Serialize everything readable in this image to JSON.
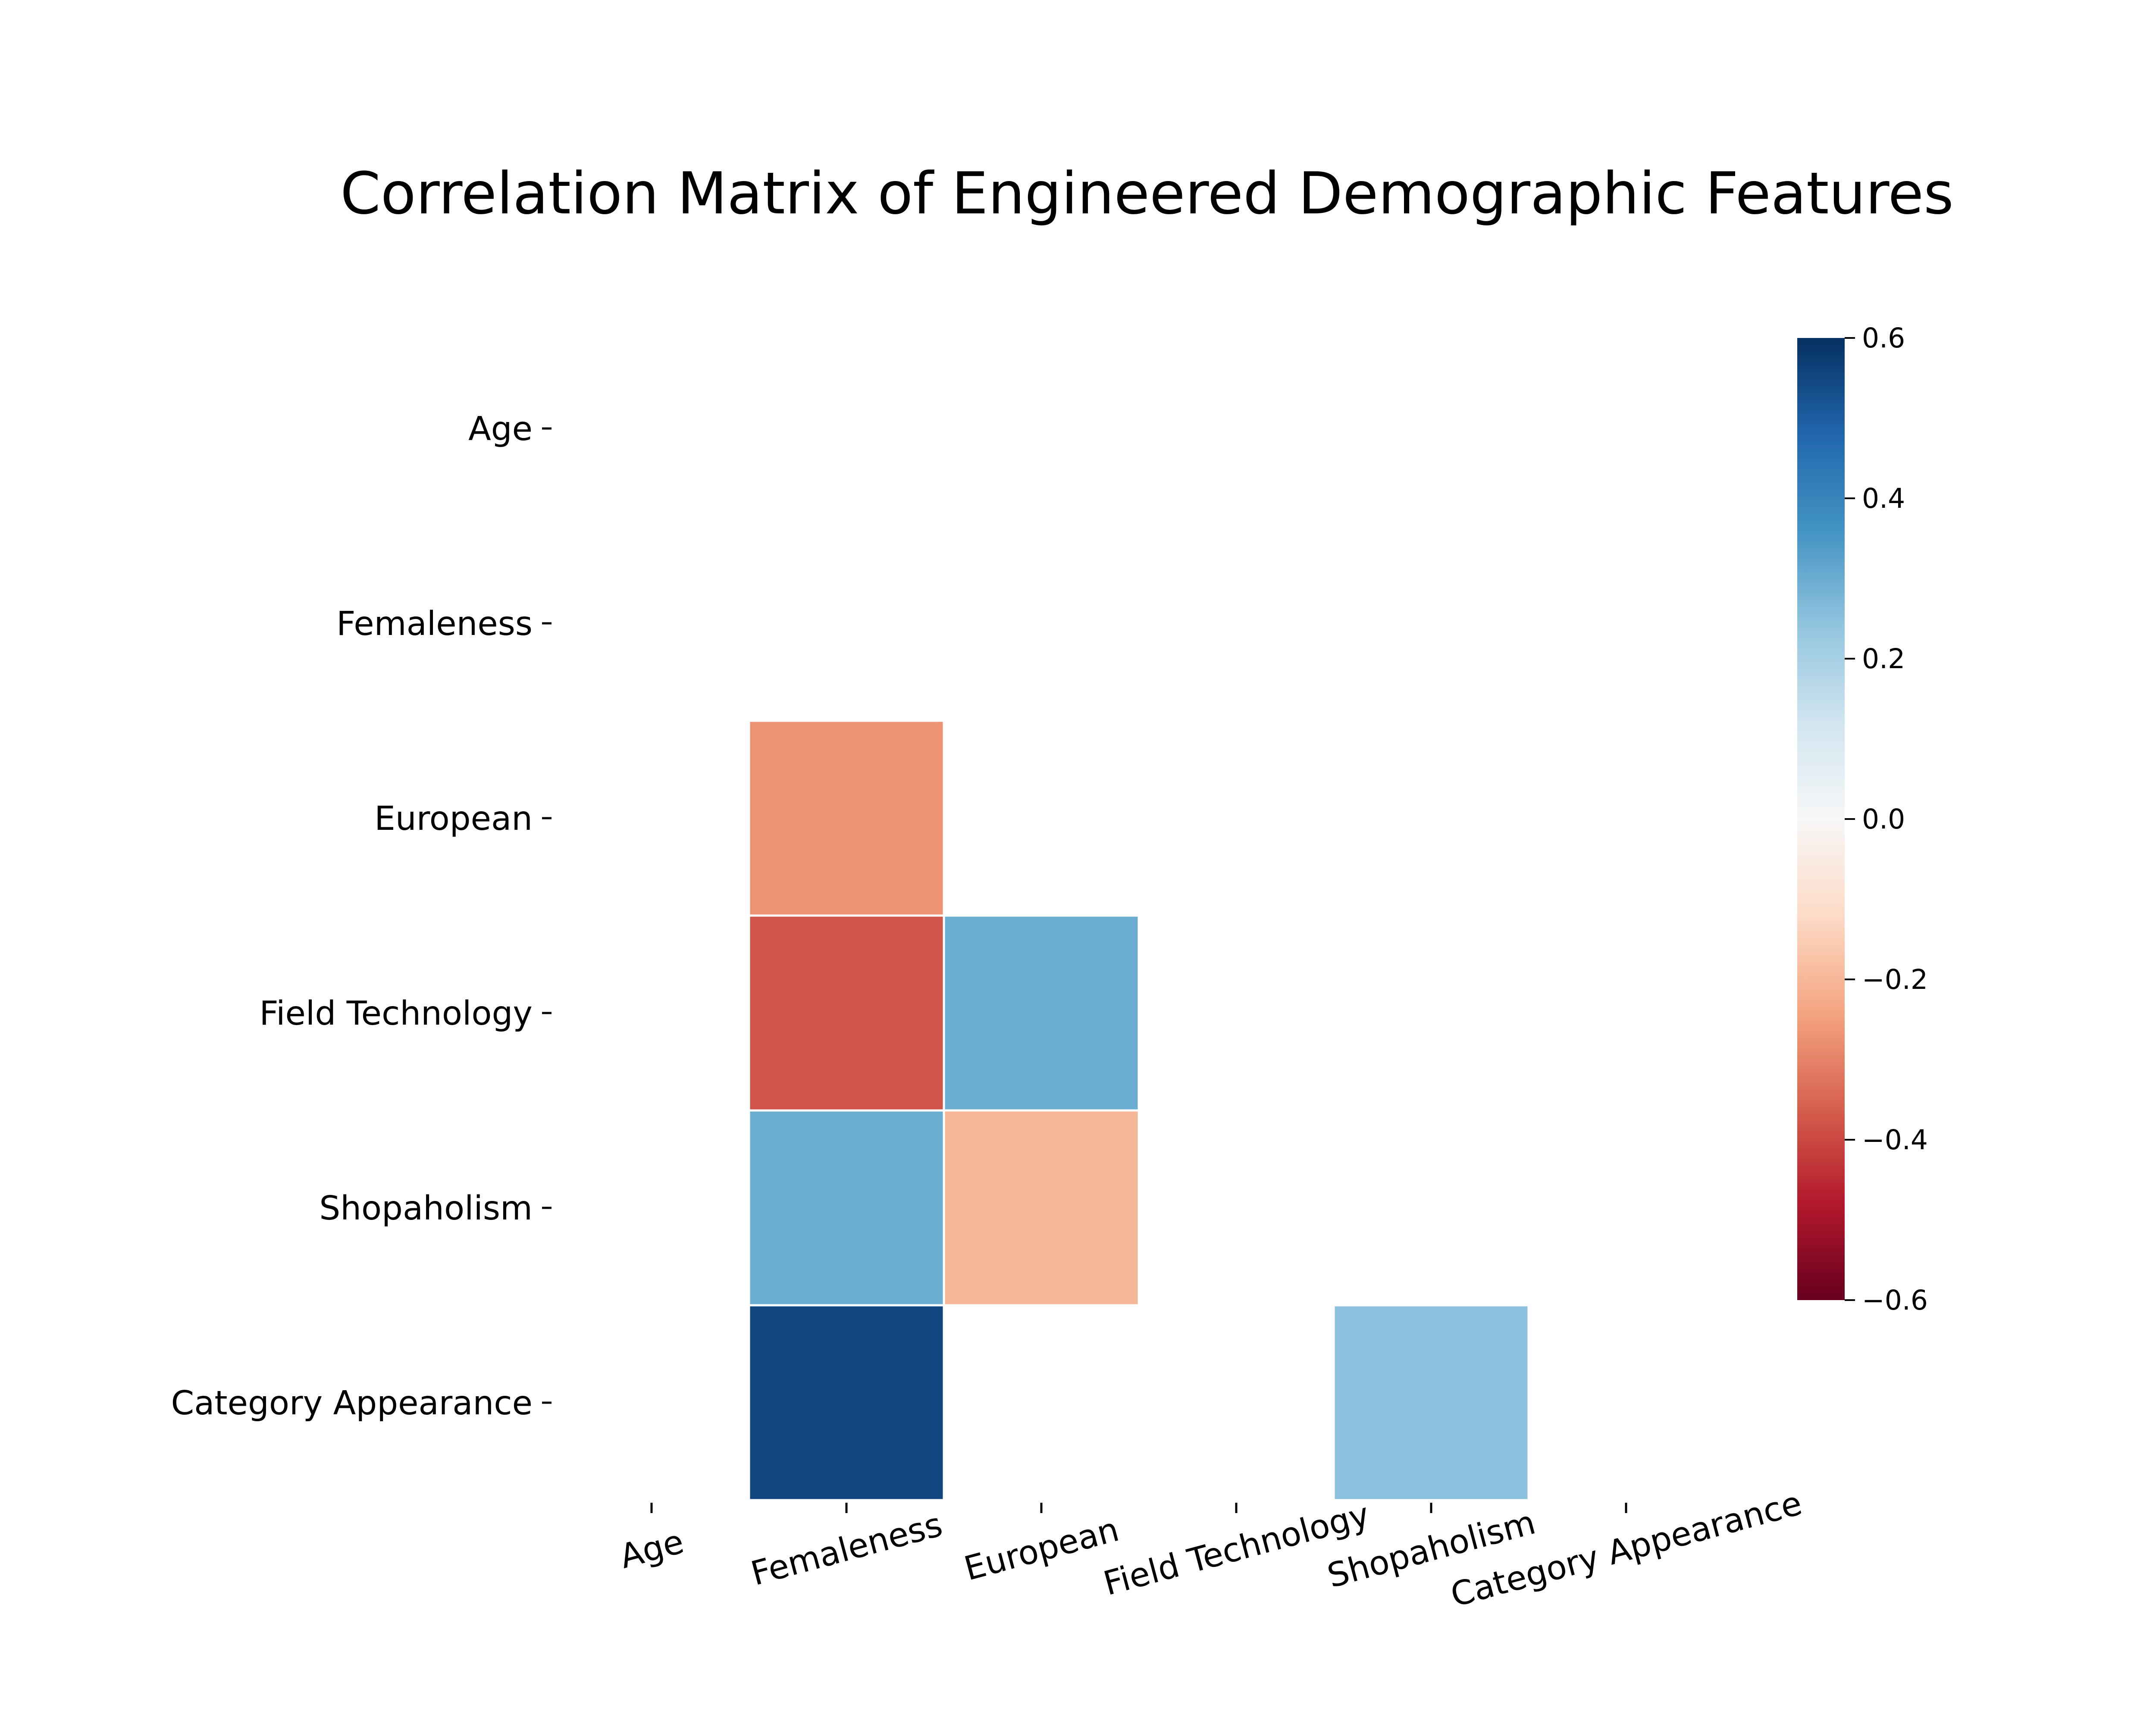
{
  "chart_data": {
    "type": "heatmap",
    "title": "Correlation Matrix of Engineered Demographic Features",
    "variables": [
      "Age",
      "Femaleness",
      "European",
      "Field Technology",
      "Shopaholism",
      "Category Appearance"
    ],
    "mask": "upper-triangle-and-diagonal; cells with |r| below threshold hidden",
    "cells": [
      {
        "row": "European",
        "col": "Femaleness",
        "value": -0.27
      },
      {
        "row": "Field Technology",
        "col": "Femaleness",
        "value": -0.38
      },
      {
        "row": "Field Technology",
        "col": "European",
        "value": 0.3
      },
      {
        "row": "Shopaholism",
        "col": "Femaleness",
        "value": 0.3
      },
      {
        "row": "Shopaholism",
        "col": "European",
        "value": -0.2
      },
      {
        "row": "Category Appearance",
        "col": "Femaleness",
        "value": 0.55
      },
      {
        "row": "Category Appearance",
        "col": "Shopaholism",
        "value": 0.25
      }
    ],
    "colormap": "RdBu",
    "colorbar": {
      "range": [
        -0.6,
        0.6
      ],
      "ticks": [
        0.6,
        0.4,
        0.2,
        0.0,
        -0.2,
        -0.4,
        -0.6
      ],
      "tick_labels": [
        "0.6",
        "0.4",
        "0.2",
        "0.0",
        "−0.2",
        "−0.4",
        "−0.6"
      ]
    },
    "x_tick_rotation_deg": -15
  }
}
